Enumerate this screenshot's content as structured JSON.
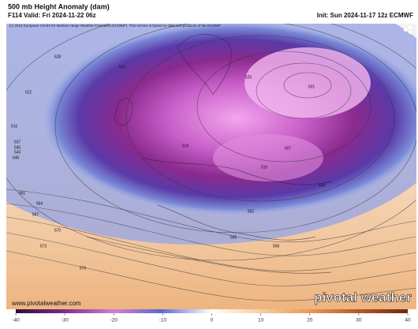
{
  "header": {
    "title": "500 mb Height Anomaly (dam)",
    "valid": "F114 Valid: Fri 2024-11-22 06z",
    "init": "Init: Sun 2024-11-17 12z ECMWF",
    "copyright": "(c) 2024 European Centre for Medium-range Weather Forecasts (ECMWF). This service is based on data and products of the ECMWF"
  },
  "map": {
    "contour_labels": [
      528,
      522,
      516,
      537,
      540,
      543,
      546,
      561,
      564,
      567,
      570,
      573,
      576,
      501,
      507,
      510,
      519,
      525,
      531,
      549,
      552,
      555,
      558
    ]
  },
  "colorbar": {
    "lim": [
      -40,
      40
    ],
    "ticks": [
      -40,
      -30,
      -20,
      -10,
      0,
      10,
      20,
      30,
      40
    ]
  },
  "footer": {
    "website": "www.pivotalweather.com",
    "logo": "pivotal weather"
  }
}
